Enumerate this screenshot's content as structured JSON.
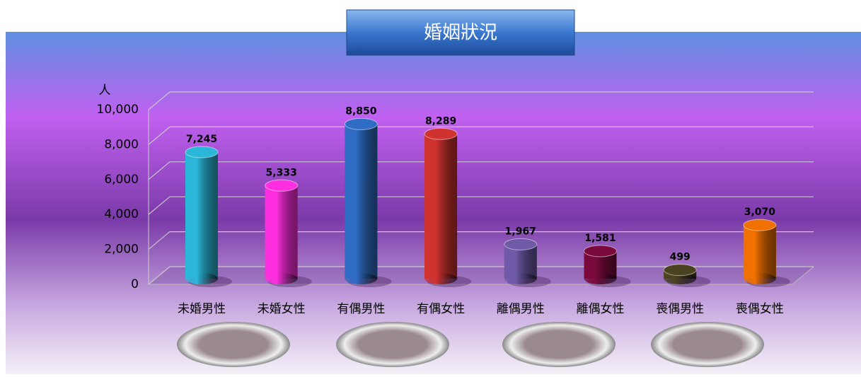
{
  "chart_data": {
    "type": "bar",
    "title": "婚姻狀況",
    "y_label": "人",
    "categories": [
      "未婚男性",
      "未婚女性",
      "有偶男性",
      "有偶女性",
      "離偶男性",
      "離偶女性",
      "喪偶男性",
      "喪偶女性"
    ],
    "values": [
      7245,
      5333,
      8850,
      8289,
      1967,
      1581,
      499,
      3070
    ],
    "value_labels": [
      "7,245",
      "5,333",
      "8,850",
      "8,289",
      "1,967",
      "1,581",
      "499",
      "3,070"
    ],
    "colors": [
      "#2bb8d8",
      "#ff2fe0",
      "#2f6cc4",
      "#d0332f",
      "#6f5aa8",
      "#7a0a3c",
      "#4a4322",
      "#f07000"
    ],
    "ylim": [
      0,
      10000
    ],
    "yticks": [
      0,
      {
        "value": 2000,
        "label": "2,000"
      },
      {
        "value": 4000,
        "label": "4,000"
      },
      {
        "value": 6000,
        "label": "6,000"
      },
      {
        "value": 8000,
        "label": "8,000"
      },
      {
        "value": 10000,
        "label": "10,000"
      }
    ],
    "grid": true
  }
}
